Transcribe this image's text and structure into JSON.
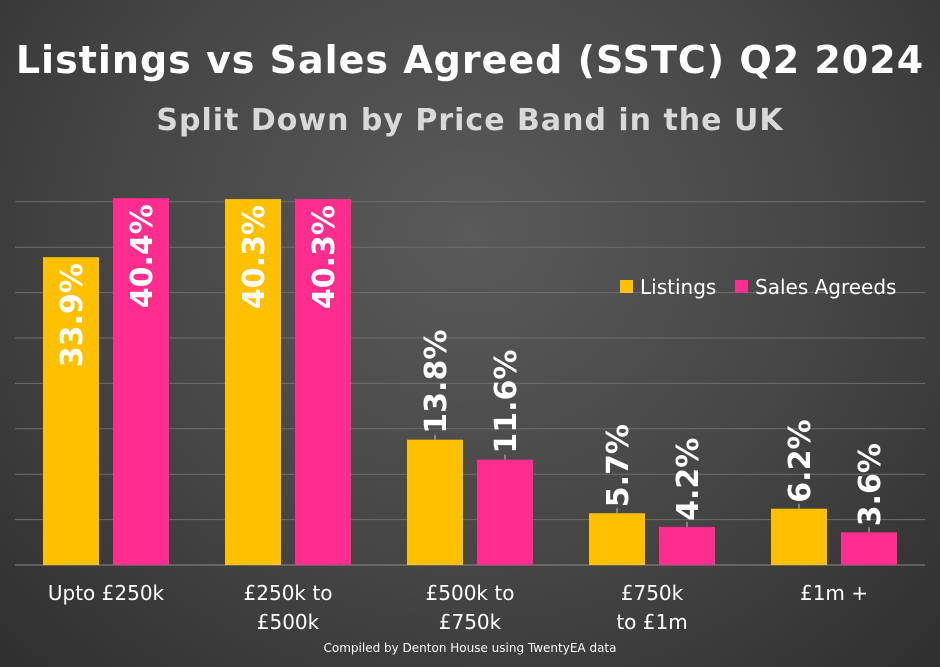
{
  "title": "Listings vs Sales Agreed (SSTC) Q2 2024",
  "subtitle": "Split Down by Price Band in the UK",
  "footer": "Compiled by Denton House using TwentyEA data",
  "colors": {
    "listings": "#ffc000",
    "sales_agreeds": "#ff2d8e",
    "grid": "#6e6e6e",
    "text": "#ffffff"
  },
  "chart_data": {
    "type": "bar",
    "categories": [
      [
        "Upto £250k"
      ],
      [
        "£250k to",
        "£500k"
      ],
      [
        "£500k to",
        "£750k"
      ],
      [
        "£750k",
        "to £1m"
      ],
      [
        "£1m +"
      ]
    ],
    "series": [
      {
        "name": "Listings",
        "values": [
          33.9,
          40.3,
          13.8,
          5.7,
          6.2
        ],
        "labels": [
          "33.9%",
          "40.3%",
          "13.8%",
          "5.7%",
          "6.2%"
        ]
      },
      {
        "name": "Sales Agreeds",
        "values": [
          40.4,
          40.3,
          11.6,
          4.2,
          3.6
        ],
        "labels": [
          "40.4%",
          "40.3%",
          "11.6%",
          "4.2%",
          "3.6%"
        ]
      }
    ],
    "ylim": [
      0,
      40
    ],
    "grid": true,
    "legend": "right",
    "y_axis_labels": false
  }
}
